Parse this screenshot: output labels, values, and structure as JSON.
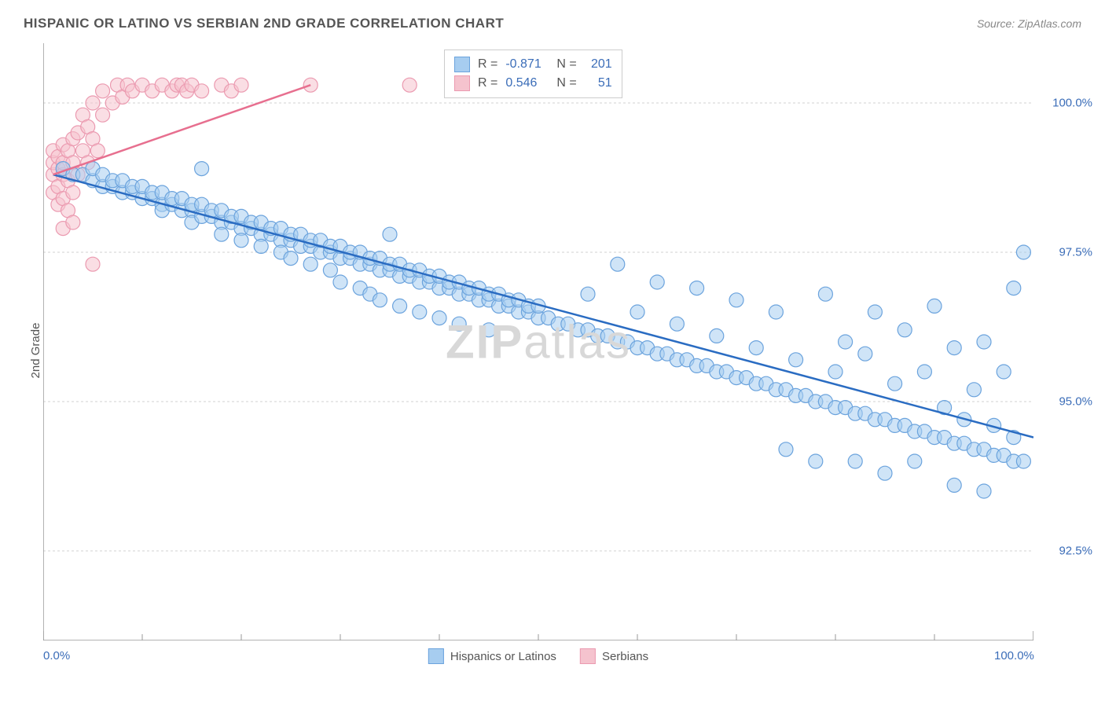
{
  "title": "HISPANIC OR LATINO VS SERBIAN 2ND GRADE CORRELATION CHART",
  "source": "Source: ZipAtlas.com",
  "ylabel": "2nd Grade",
  "watermark_bold": "ZIP",
  "watermark_light": "atlas",
  "chart": {
    "type": "scatter",
    "xlim": [
      0,
      100
    ],
    "ylim": [
      91,
      101
    ],
    "x_ticks": [
      0,
      100
    ],
    "x_tick_labels": [
      "0.0%",
      "100.0%"
    ],
    "x_minor_ticks": [
      10,
      20,
      30,
      40,
      50,
      60,
      70,
      80,
      90
    ],
    "y_ticks": [
      92.5,
      95.0,
      97.5,
      100.0
    ],
    "y_tick_labels": [
      "92.5%",
      "95.0%",
      "97.5%",
      "100.0%"
    ],
    "grid_color": "#d0d0d0",
    "axis_color": "#999999",
    "background_color": "#ffffff",
    "marker_radius": 9,
    "stroke_width": 1.2,
    "series": [
      {
        "name": "Hispanics or Latinos",
        "color_fill": "#a7cdf0",
        "color_stroke": "#6ba3dd",
        "line_color": "#2a6cc2",
        "R": "-0.871",
        "N": "201",
        "trend": {
          "x1": 1,
          "y1": 98.8,
          "x2": 100,
          "y2": 94.4
        },
        "points": [
          [
            2,
            98.9
          ],
          [
            3,
            98.8
          ],
          [
            4,
            98.8
          ],
          [
            5,
            98.7
          ],
          [
            5,
            98.9
          ],
          [
            6,
            98.6
          ],
          [
            6,
            98.8
          ],
          [
            7,
            98.6
          ],
          [
            7,
            98.7
          ],
          [
            8,
            98.5
          ],
          [
            8,
            98.7
          ],
          [
            9,
            98.5
          ],
          [
            9,
            98.6
          ],
          [
            10,
            98.4
          ],
          [
            10,
            98.6
          ],
          [
            11,
            98.4
          ],
          [
            11,
            98.5
          ],
          [
            12,
            98.3
          ],
          [
            12,
            98.5
          ],
          [
            12,
            98.2
          ],
          [
            13,
            98.3
          ],
          [
            13,
            98.4
          ],
          [
            14,
            98.2
          ],
          [
            14,
            98.4
          ],
          [
            15,
            98.2
          ],
          [
            15,
            98.3
          ],
          [
            15,
            98.0
          ],
          [
            16,
            98.1
          ],
          [
            16,
            98.3
          ],
          [
            16,
            98.9
          ],
          [
            17,
            98.1
          ],
          [
            17,
            98.2
          ],
          [
            18,
            98.0
          ],
          [
            18,
            98.2
          ],
          [
            18,
            97.8
          ],
          [
            19,
            98.0
          ],
          [
            19,
            98.1
          ],
          [
            20,
            97.9
          ],
          [
            20,
            98.1
          ],
          [
            20,
            97.7
          ],
          [
            21,
            97.9
          ],
          [
            21,
            98.0
          ],
          [
            22,
            97.8
          ],
          [
            22,
            98.0
          ],
          [
            22,
            97.6
          ],
          [
            23,
            97.8
          ],
          [
            23,
            97.9
          ],
          [
            24,
            97.7
          ],
          [
            24,
            97.9
          ],
          [
            24,
            97.5
          ],
          [
            25,
            97.7
          ],
          [
            25,
            97.8
          ],
          [
            25,
            97.4
          ],
          [
            26,
            97.6
          ],
          [
            26,
            97.8
          ],
          [
            27,
            97.6
          ],
          [
            27,
            97.7
          ],
          [
            27,
            97.3
          ],
          [
            28,
            97.5
          ],
          [
            28,
            97.7
          ],
          [
            29,
            97.5
          ],
          [
            29,
            97.6
          ],
          [
            29,
            97.2
          ],
          [
            30,
            97.4
          ],
          [
            30,
            97.6
          ],
          [
            30,
            97.0
          ],
          [
            31,
            97.4
          ],
          [
            31,
            97.5
          ],
          [
            32,
            97.3
          ],
          [
            32,
            97.5
          ],
          [
            32,
            96.9
          ],
          [
            33,
            97.3
          ],
          [
            33,
            97.4
          ],
          [
            33,
            96.8
          ],
          [
            34,
            97.2
          ],
          [
            34,
            97.4
          ],
          [
            34,
            96.7
          ],
          [
            35,
            97.2
          ],
          [
            35,
            97.3
          ],
          [
            35,
            97.8
          ],
          [
            36,
            97.1
          ],
          [
            36,
            97.3
          ],
          [
            36,
            96.6
          ],
          [
            37,
            97.1
          ],
          [
            37,
            97.2
          ],
          [
            38,
            97.0
          ],
          [
            38,
            97.2
          ],
          [
            38,
            96.5
          ],
          [
            39,
            97.0
          ],
          [
            39,
            97.1
          ],
          [
            40,
            96.9
          ],
          [
            40,
            97.1
          ],
          [
            40,
            96.4
          ],
          [
            41,
            96.9
          ],
          [
            41,
            97.0
          ],
          [
            42,
            96.8
          ],
          [
            42,
            97.0
          ],
          [
            42,
            96.3
          ],
          [
            43,
            96.8
          ],
          [
            43,
            96.9
          ],
          [
            44,
            96.7
          ],
          [
            44,
            96.9
          ],
          [
            45,
            96.7
          ],
          [
            45,
            96.8
          ],
          [
            45,
            96.2
          ],
          [
            46,
            96.6
          ],
          [
            46,
            96.8
          ],
          [
            47,
            96.6
          ],
          [
            47,
            96.7
          ],
          [
            48,
            96.5
          ],
          [
            48,
            96.7
          ],
          [
            49,
            96.5
          ],
          [
            49,
            96.6
          ],
          [
            50,
            96.4
          ],
          [
            50,
            96.6
          ],
          [
            51,
            96.4
          ],
          [
            52,
            96.3
          ],
          [
            53,
            96.3
          ],
          [
            54,
            96.2
          ],
          [
            55,
            96.2
          ],
          [
            55,
            96.8
          ],
          [
            56,
            96.1
          ],
          [
            57,
            96.1
          ],
          [
            58,
            96.0
          ],
          [
            58,
            97.3
          ],
          [
            59,
            96.0
          ],
          [
            60,
            95.9
          ],
          [
            60,
            96.5
          ],
          [
            61,
            95.9
          ],
          [
            62,
            95.8
          ],
          [
            62,
            97.0
          ],
          [
            63,
            95.8
          ],
          [
            64,
            95.7
          ],
          [
            64,
            96.3
          ],
          [
            65,
            95.7
          ],
          [
            66,
            95.6
          ],
          [
            66,
            96.9
          ],
          [
            67,
            95.6
          ],
          [
            68,
            95.5
          ],
          [
            68,
            96.1
          ],
          [
            69,
            95.5
          ],
          [
            70,
            95.4
          ],
          [
            70,
            96.7
          ],
          [
            71,
            95.4
          ],
          [
            72,
            95.3
          ],
          [
            72,
            95.9
          ],
          [
            73,
            95.3
          ],
          [
            74,
            95.2
          ],
          [
            74,
            96.5
          ],
          [
            75,
            95.2
          ],
          [
            75,
            94.2
          ],
          [
            76,
            95.1
          ],
          [
            76,
            95.7
          ],
          [
            77,
            95.1
          ],
          [
            78,
            95.0
          ],
          [
            78,
            94.0
          ],
          [
            79,
            95.0
          ],
          [
            79,
            96.8
          ],
          [
            80,
            94.9
          ],
          [
            80,
            95.5
          ],
          [
            81,
            94.9
          ],
          [
            81,
            96.0
          ],
          [
            82,
            94.8
          ],
          [
            82,
            94.0
          ],
          [
            83,
            94.8
          ],
          [
            83,
            95.8
          ],
          [
            84,
            94.7
          ],
          [
            84,
            96.5
          ],
          [
            85,
            94.7
          ],
          [
            85,
            93.8
          ],
          [
            86,
            94.6
          ],
          [
            86,
            95.3
          ],
          [
            87,
            94.6
          ],
          [
            87,
            96.2
          ],
          [
            88,
            94.5
          ],
          [
            88,
            94.0
          ],
          [
            89,
            94.5
          ],
          [
            89,
            95.5
          ],
          [
            90,
            94.4
          ],
          [
            90,
            96.6
          ],
          [
            91,
            94.4
          ],
          [
            91,
            94.9
          ],
          [
            92,
            94.3
          ],
          [
            92,
            95.9
          ],
          [
            92,
            93.6
          ],
          [
            93,
            94.3
          ],
          [
            93,
            94.7
          ],
          [
            94,
            94.2
          ],
          [
            94,
            95.2
          ],
          [
            95,
            94.2
          ],
          [
            95,
            96.0
          ],
          [
            95,
            93.5
          ],
          [
            96,
            94.1
          ],
          [
            96,
            94.6
          ],
          [
            97,
            94.1
          ],
          [
            97,
            95.5
          ],
          [
            98,
            94.0
          ],
          [
            98,
            94.4
          ],
          [
            98,
            96.9
          ],
          [
            99,
            94.0
          ],
          [
            99,
            97.5
          ]
        ]
      },
      {
        "name": "Serbians",
        "color_fill": "#f5c3ce",
        "color_stroke": "#eb9ab0",
        "line_color": "#e76f8f",
        "R": "0.546",
        "N": "51",
        "trend": {
          "x1": 1,
          "y1": 98.8,
          "x2": 27,
          "y2": 100.3
        },
        "points": [
          [
            1,
            98.5
          ],
          [
            1,
            98.8
          ],
          [
            1,
            99.0
          ],
          [
            1,
            99.2
          ],
          [
            1.5,
            98.3
          ],
          [
            1.5,
            98.6
          ],
          [
            1.5,
            98.9
          ],
          [
            1.5,
            99.1
          ],
          [
            2,
            97.9
          ],
          [
            2,
            98.4
          ],
          [
            2,
            98.8
          ],
          [
            2,
            99.0
          ],
          [
            2,
            99.3
          ],
          [
            2.5,
            98.2
          ],
          [
            2.5,
            98.7
          ],
          [
            2.5,
            99.2
          ],
          [
            3,
            98.0
          ],
          [
            3,
            98.5
          ],
          [
            3,
            99.0
          ],
          [
            3,
            99.4
          ],
          [
            3.5,
            98.8
          ],
          [
            3.5,
            99.5
          ],
          [
            4,
            99.2
          ],
          [
            4,
            99.8
          ],
          [
            4.5,
            99.0
          ],
          [
            4.5,
            99.6
          ],
          [
            5,
            99.4
          ],
          [
            5,
            100.0
          ],
          [
            5,
            97.3
          ],
          [
            5.5,
            99.2
          ],
          [
            6,
            99.8
          ],
          [
            6,
            100.2
          ],
          [
            7,
            100.0
          ],
          [
            7.5,
            100.3
          ],
          [
            8,
            100.1
          ],
          [
            8.5,
            100.3
          ],
          [
            9,
            100.2
          ],
          [
            10,
            100.3
          ],
          [
            11,
            100.2
          ],
          [
            12,
            100.3
          ],
          [
            13,
            100.2
          ],
          [
            13.5,
            100.3
          ],
          [
            14,
            100.3
          ],
          [
            14.5,
            100.2
          ],
          [
            15,
            100.3
          ],
          [
            16,
            100.2
          ],
          [
            18,
            100.3
          ],
          [
            19,
            100.2
          ],
          [
            20,
            100.3
          ],
          [
            27,
            100.3
          ],
          [
            37,
            100.3
          ]
        ]
      }
    ]
  },
  "legend": {
    "item1": "Hispanics or Latinos",
    "item2": "Serbians"
  }
}
